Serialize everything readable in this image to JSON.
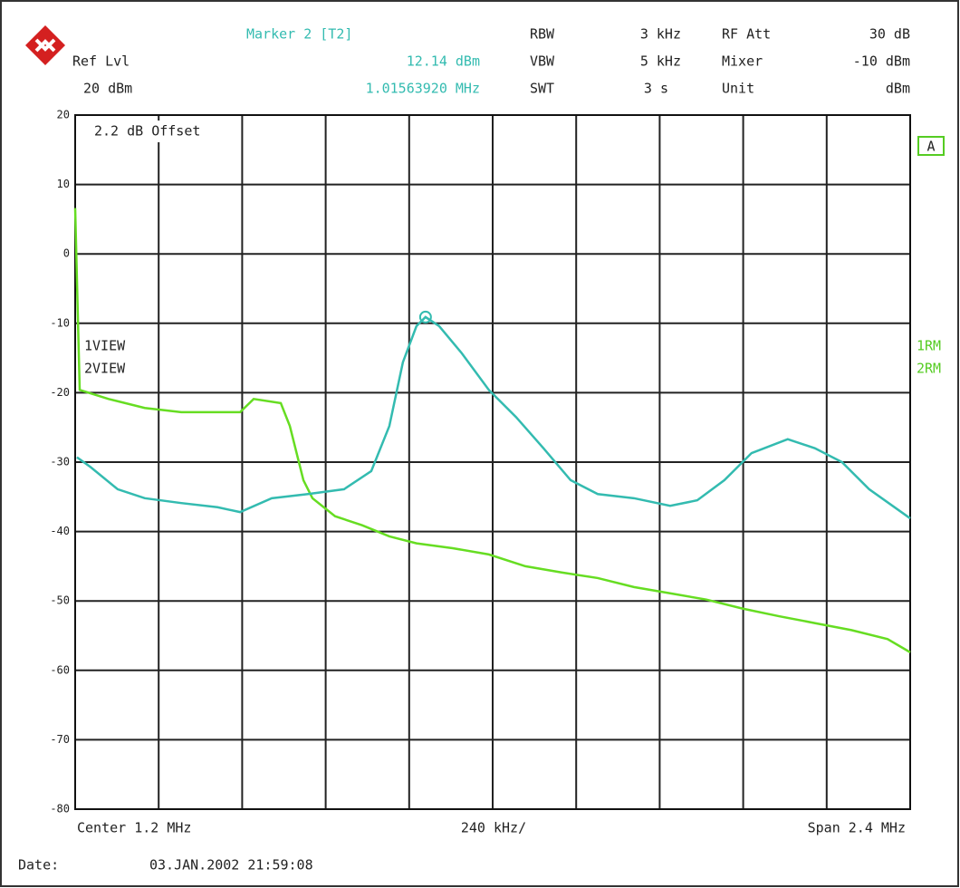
{
  "header": {
    "ref_label": "Ref Lvl",
    "ref_value": "20 dBm",
    "marker_title": "Marker 2 [T2]",
    "marker_level": "12.14 dBm",
    "marker_freq": "1.01563920 MHz",
    "rbw_label": "RBW",
    "rbw_value": "3 kHz",
    "vbw_label": "VBW",
    "vbw_value": "5 kHz",
    "swt_label": "SWT",
    "swt_value": "3 s",
    "att_label": "RF Att",
    "att_value": "30 dB",
    "mixer_label": "Mixer",
    "mixer_value": "-10 dBm",
    "unit_label": "Unit",
    "unit_value": "dBm",
    "offset": "2.2 dB Offset",
    "trace_mode": "A",
    "rm1": "1RM",
    "rm2": "2RM",
    "center": "Center 1.2 MHz",
    "division": "240 kHz/",
    "span": "Span 2.4 MHz",
    "date_label": "Date:",
    "date_value": "03.JAN.2002 21:59:08"
  },
  "chart_data": {
    "type": "line",
    "xlim": [
      0,
      2.4
    ],
    "xticks": [
      0,
      0.24,
      0.48,
      0.72,
      0.96,
      1.2,
      1.44,
      1.68,
      1.92,
      2.16,
      2.4
    ],
    "ylim": [
      -80,
      20
    ],
    "yticks": [
      20,
      10,
      0,
      -10,
      -20,
      -30,
      -40,
      -50,
      -60,
      -70,
      -80
    ],
    "grid": true,
    "series": [
      {
        "name": "1VIEW",
        "color": "#66dd22",
        "x": [
          0,
          0.013,
          0.096,
          0.2,
          0.305,
          0.409,
          0.474,
          0.513,
          0.591,
          0.617,
          0.656,
          0.682,
          0.747,
          0.825,
          0.903,
          0.981,
          1.085,
          1.189,
          1.294,
          1.398,
          1.502,
          1.606,
          1.71,
          1.814,
          1.918,
          2.023,
          2.127,
          2.231,
          2.335,
          2.4
        ],
        "values": [
          6.6,
          -19.6,
          -20.9,
          -22.2,
          -22.8,
          -22.8,
          -22.8,
          -20.9,
          -21.5,
          -24.8,
          -32.6,
          -35.2,
          -37.8,
          -39.1,
          -40.7,
          -41.7,
          -42.4,
          -43.3,
          -45,
          -45.9,
          -46.7,
          -48,
          -48.9,
          -49.8,
          -51.1,
          -52.2,
          -53.2,
          -54.2,
          -55.5,
          -57.4
        ]
      },
      {
        "name": "2VIEW",
        "color": "#33bbb0",
        "x": [
          0.005,
          0.044,
          0.122,
          0.2,
          0.305,
          0.409,
          0.474,
          0.565,
          0.669,
          0.773,
          0.851,
          0.903,
          0.942,
          0.981,
          1.007,
          1.046,
          1.111,
          1.189,
          1.267,
          1.346,
          1.424,
          1.502,
          1.606,
          1.71,
          1.788,
          1.866,
          1.944,
          2.048,
          2.126,
          2.204,
          2.282,
          2.4
        ],
        "values": [
          -29.3,
          -30.7,
          -33.9,
          -35.2,
          -35.9,
          -36.5,
          -37.2,
          -35.2,
          -34.6,
          -33.9,
          -31.3,
          -24.8,
          -15.6,
          -10.4,
          -9.1,
          -10.4,
          -14.3,
          -19.6,
          -23.5,
          -28,
          -32.6,
          -34.6,
          -35.2,
          -36.3,
          -35.5,
          -32.6,
          -28.7,
          -26.7,
          -28,
          -30,
          -33.9,
          -38.1
        ]
      }
    ]
  }
}
